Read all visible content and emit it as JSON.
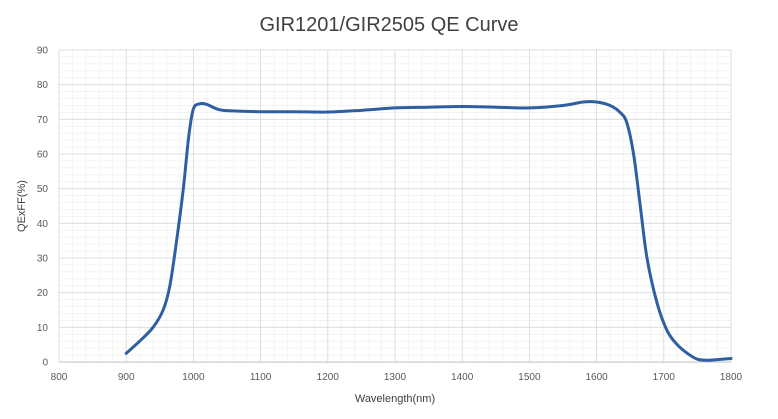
{
  "chart_data": {
    "type": "line",
    "title": "GIR1201/GIR2505 QE Curve",
    "xlabel": "Wavelength(nm)",
    "ylabel": "QExFF(%)",
    "xlim": [
      800,
      1800
    ],
    "ylim": [
      0,
      90
    ],
    "x_ticks": [
      800,
      900,
      1000,
      1100,
      1200,
      1300,
      1400,
      1500,
      1600,
      1700,
      1800
    ],
    "y_ticks": [
      0,
      10,
      20,
      30,
      40,
      50,
      60,
      70,
      80,
      90
    ],
    "grid": true,
    "series": [
      {
        "color": "#2e5fa3",
        "points": [
          [
            900,
            2.5
          ],
          [
            920,
            6
          ],
          [
            940,
            10
          ],
          [
            955,
            15
          ],
          [
            965,
            22
          ],
          [
            975,
            35
          ],
          [
            985,
            50
          ],
          [
            993,
            65
          ],
          [
            1000,
            73
          ],
          [
            1010,
            74.5
          ],
          [
            1020,
            74.3
          ],
          [
            1035,
            73
          ],
          [
            1050,
            72.5
          ],
          [
            1100,
            72.2
          ],
          [
            1150,
            72.2
          ],
          [
            1200,
            72.1
          ],
          [
            1250,
            72.6
          ],
          [
            1300,
            73.3
          ],
          [
            1350,
            73.5
          ],
          [
            1400,
            73.7
          ],
          [
            1450,
            73.5
          ],
          [
            1500,
            73.3
          ],
          [
            1550,
            74
          ],
          [
            1580,
            75
          ],
          [
            1600,
            75
          ],
          [
            1620,
            74
          ],
          [
            1635,
            72
          ],
          [
            1645,
            69
          ],
          [
            1655,
            60
          ],
          [
            1665,
            45
          ],
          [
            1675,
            30
          ],
          [
            1690,
            17
          ],
          [
            1705,
            9
          ],
          [
            1720,
            5
          ],
          [
            1735,
            2.5
          ],
          [
            1750,
            0.8
          ],
          [
            1765,
            0.5
          ],
          [
            1780,
            0.7
          ],
          [
            1800,
            1
          ]
        ]
      }
    ]
  }
}
